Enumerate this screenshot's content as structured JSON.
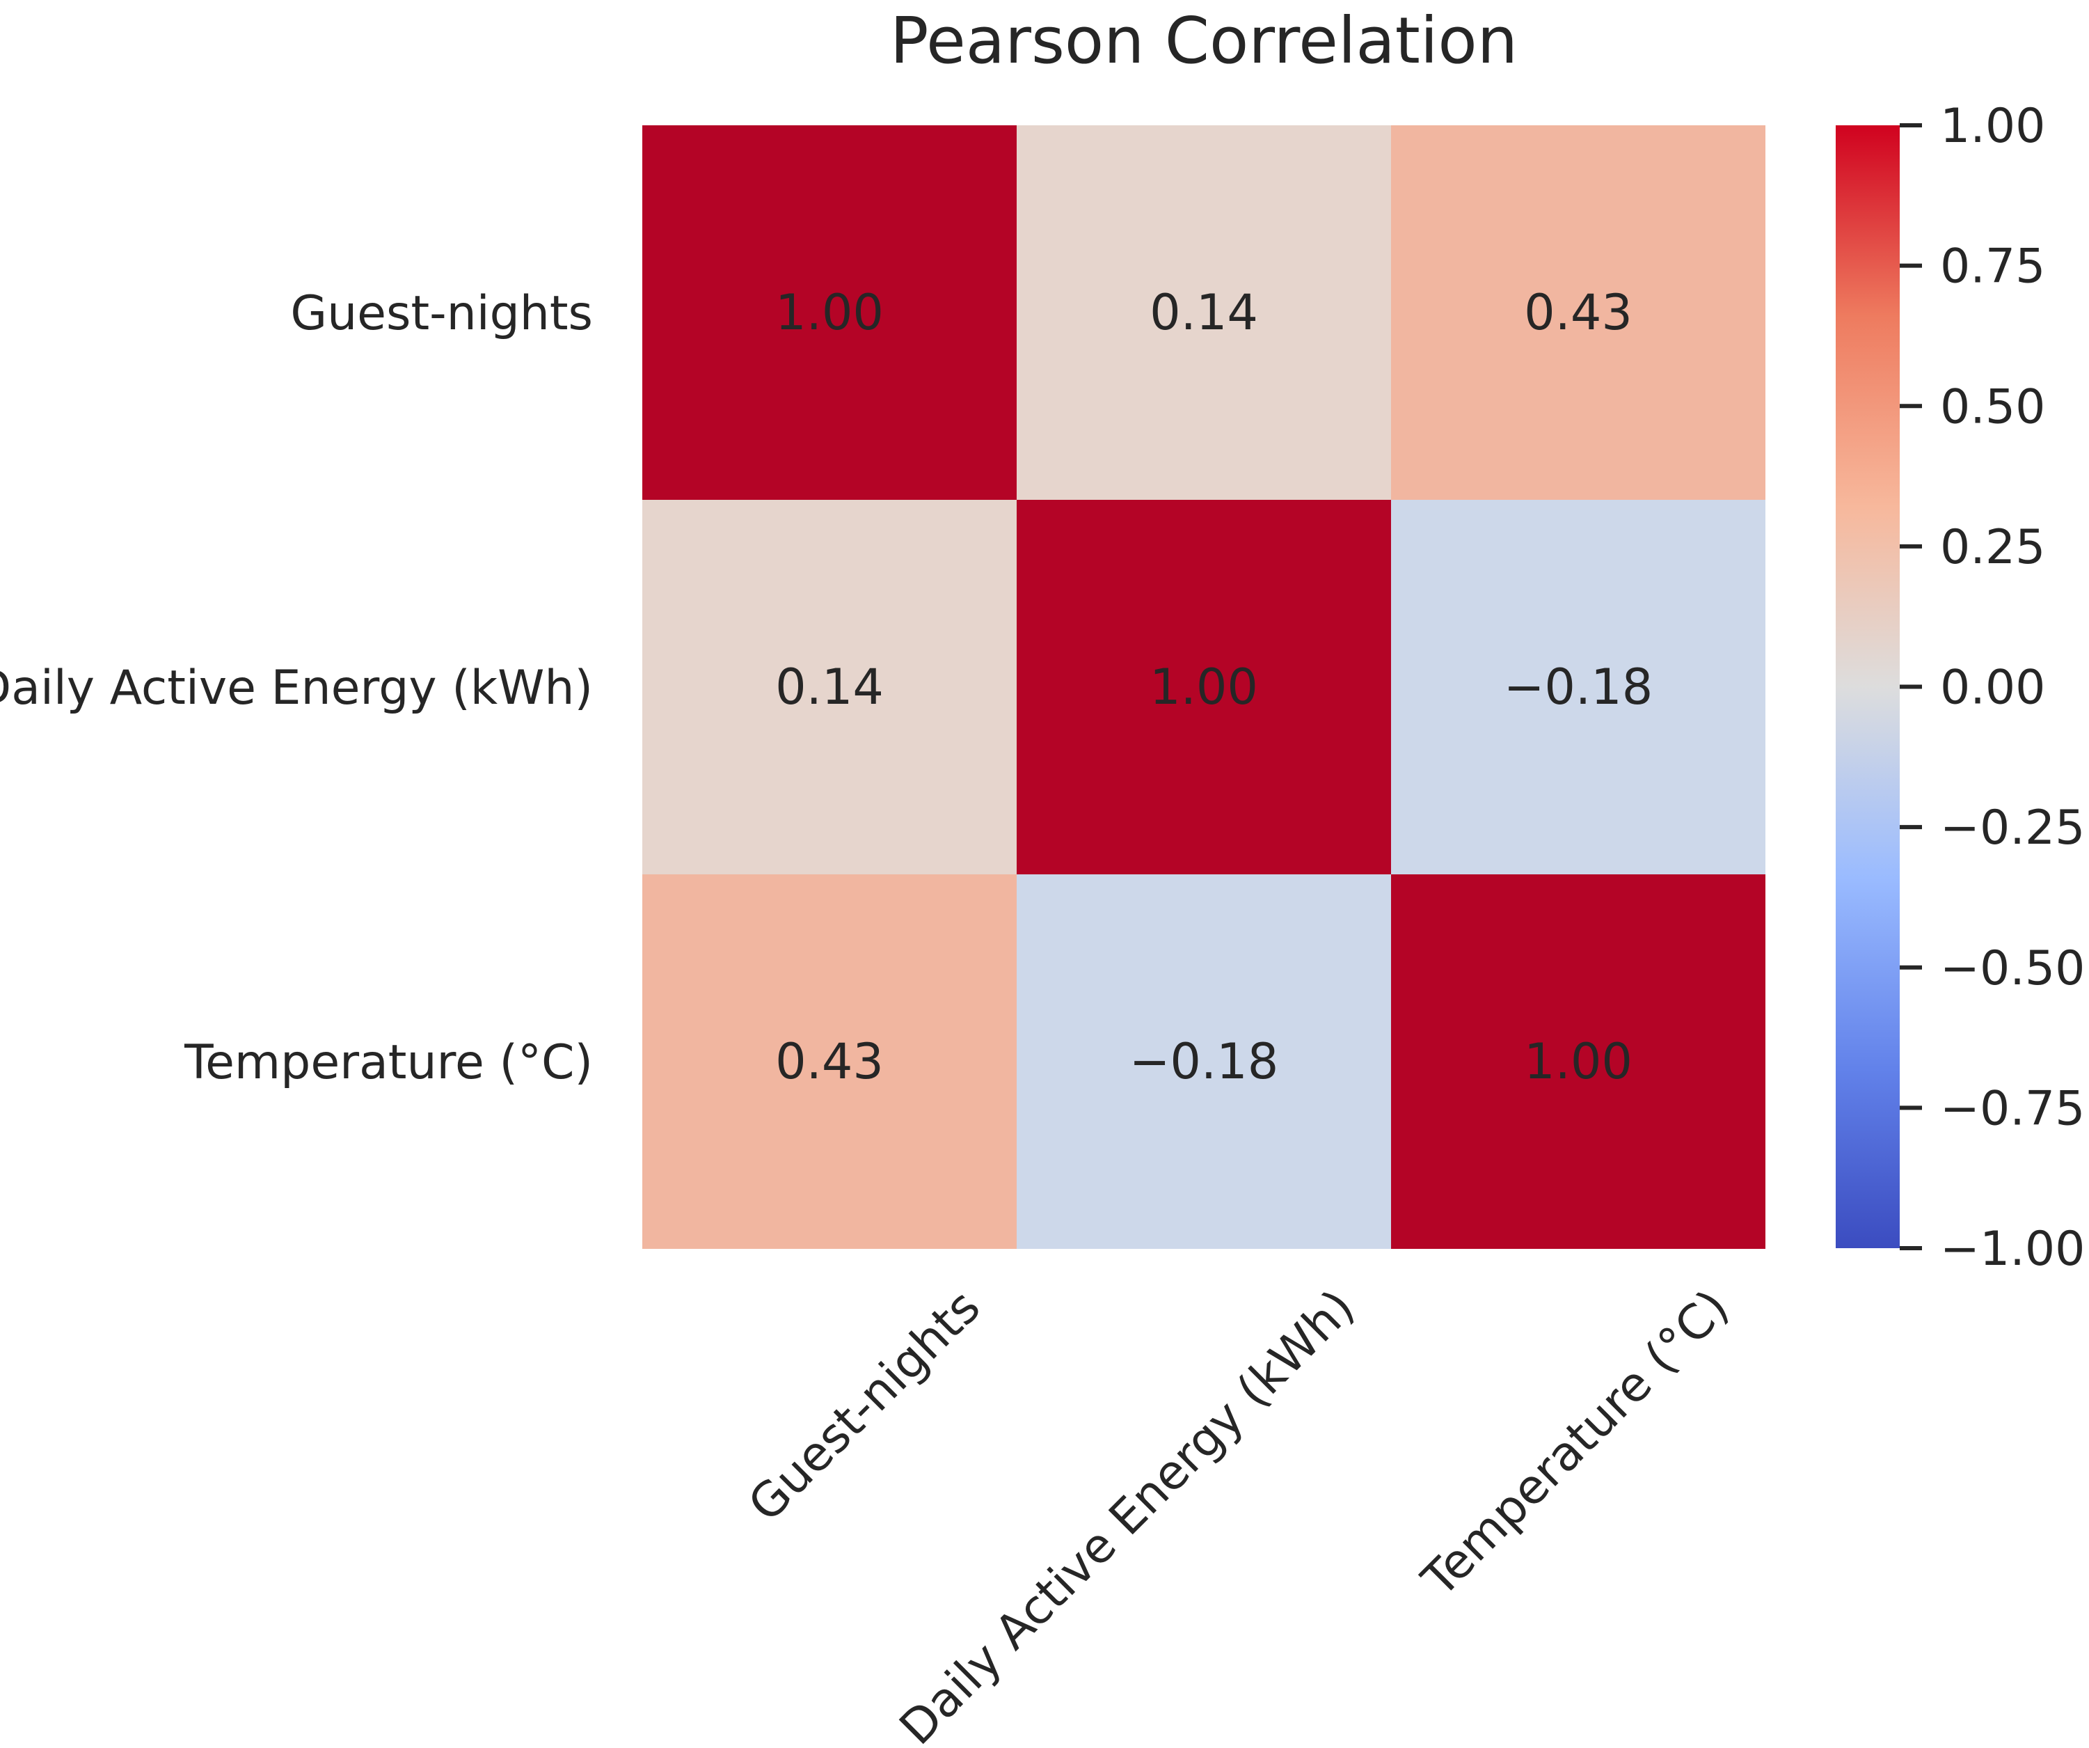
{
  "chart_data": {
    "type": "heatmap",
    "title": "Pearson Correlation",
    "row_labels": [
      "Guest-nights",
      "Daily Active Energy (kWh)",
      "Temperature (°C)"
    ],
    "col_labels": [
      "Guest-nights",
      "Daily Active Energy (kWh)",
      "Temperature (°C)"
    ],
    "values": [
      [
        1.0,
        0.14,
        0.43
      ],
      [
        0.14,
        1.0,
        -0.18
      ],
      [
        0.43,
        -0.18,
        1.0
      ]
    ],
    "cell_labels": [
      [
        "1.00",
        "0.14",
        "0.43"
      ],
      [
        "0.14",
        "1.00",
        "−0.18"
      ],
      [
        "0.43",
        "−0.18",
        "1.00"
      ]
    ],
    "colorbar": {
      "vmin": -1.0,
      "vmax": 1.0,
      "ticks": [
        1.0,
        0.75,
        0.5,
        0.25,
        0.0,
        -0.25,
        -0.5,
        -0.75,
        -1.0
      ],
      "tick_labels": [
        "1.00",
        "0.75",
        "0.50",
        "0.25",
        "0.00",
        "−0.25",
        "−0.50",
        "−0.75",
        "−1.00"
      ]
    },
    "colormap": "coolwarm",
    "colormap_stops": [
      "#3b4cc0",
      "#7b9ff9",
      "#c0d4f5",
      "#dddddd",
      "#f2cbb7",
      "#ee8468",
      "#b40426"
    ]
  }
}
